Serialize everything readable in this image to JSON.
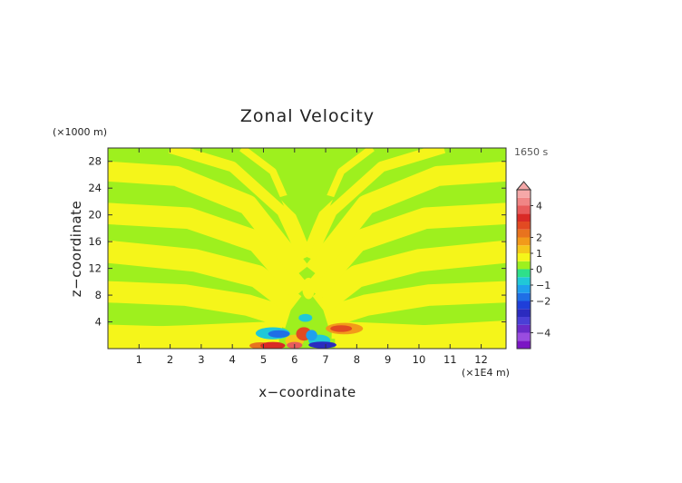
{
  "chart_data": {
    "type": "heatmap",
    "title": "Zonal Velocity",
    "xlabel": "x−coordinate",
    "ylabel": "z−coordinate",
    "x_unit": "(×1E4 m)",
    "y_unit": "(×1000 m)",
    "time_label": "1650 s",
    "xlim": [
      0,
      12.8
    ],
    "ylim": [
      0,
      30
    ],
    "x_ticks": [
      {
        "value": 1,
        "label": "1"
      },
      {
        "value": 2,
        "label": "2"
      },
      {
        "value": 3,
        "label": "3"
      },
      {
        "value": 4,
        "label": "4"
      },
      {
        "value": 5,
        "label": "5"
      },
      {
        "value": 6,
        "label": "6"
      },
      {
        "value": 7,
        "label": "7"
      },
      {
        "value": 8,
        "label": "8"
      },
      {
        "value": 9,
        "label": "9"
      },
      {
        "value": 10,
        "label": "10"
      },
      {
        "value": 11,
        "label": "11"
      },
      {
        "value": 12,
        "label": "12"
      }
    ],
    "y_ticks": [
      {
        "value": 4,
        "label": "4"
      },
      {
        "value": 8,
        "label": "8"
      },
      {
        "value": 12,
        "label": "12"
      },
      {
        "value": 16,
        "label": "16"
      },
      {
        "value": 20,
        "label": "20"
      },
      {
        "value": 24,
        "label": "24"
      },
      {
        "value": 28,
        "label": "28"
      }
    ],
    "colorbar": {
      "range": [
        -5,
        5
      ],
      "levels": [
        {
          "from": -5.0,
          "to": -4.5,
          "color": "#7b16c4"
        },
        {
          "from": -4.5,
          "to": -4.0,
          "color": "#9a4ce0"
        },
        {
          "from": -4.0,
          "to": -3.5,
          "color": "#6a2bc9"
        },
        {
          "from": -3.5,
          "to": -3.0,
          "color": "#4a3fd6"
        },
        {
          "from": -3.0,
          "to": -2.5,
          "color": "#2b2bbf"
        },
        {
          "from": -2.5,
          "to": -2.0,
          "color": "#1f3fd9"
        },
        {
          "from": -2.0,
          "to": -1.5,
          "color": "#1f6fe6"
        },
        {
          "from": -1.5,
          "to": -1.0,
          "color": "#1fa0ee"
        },
        {
          "from": -1.0,
          "to": -0.5,
          "color": "#20c8d8"
        },
        {
          "from": -0.5,
          "to": 0.0,
          "color": "#2ee08a"
        },
        {
          "from": 0.0,
          "to": 0.5,
          "color": "#9ef01e"
        },
        {
          "from": 0.5,
          "to": 1.0,
          "color": "#f5f51a"
        },
        {
          "from": 1.0,
          "to": 1.5,
          "color": "#f5c81a"
        },
        {
          "from": 1.5,
          "to": 2.0,
          "color": "#f29a1a"
        },
        {
          "from": 2.0,
          "to": 2.5,
          "color": "#e8731e"
        },
        {
          "from": 2.5,
          "to": 3.0,
          "color": "#e24a22"
        },
        {
          "from": 3.0,
          "to": 3.5,
          "color": "#d92a26"
        },
        {
          "from": 3.5,
          "to": 4.0,
          "color": "#e85b5b"
        },
        {
          "from": 4.0,
          "to": 4.5,
          "color": "#f08585"
        },
        {
          "from": 4.5,
          "to": 5.0,
          "color": "#f5a8a8"
        }
      ],
      "ticks": [
        {
          "value": 4,
          "label": "4"
        },
        {
          "value": 2,
          "label": "2"
        },
        {
          "value": 1,
          "label": "1"
        },
        {
          "value": 0,
          "label": "0"
        },
        {
          "value": -1,
          "label": "−1"
        },
        {
          "value": -2,
          "label": "−2"
        },
        {
          "value": -4,
          "label": "−4"
        }
      ],
      "extend": "max"
    },
    "features": {
      "background_color": "#9ef01e",
      "band_color": "#f5f51a",
      "source_x": 6.4,
      "source_z": 0.8,
      "near_source_max": 4.5,
      "near_source_min": -3.0
    }
  }
}
